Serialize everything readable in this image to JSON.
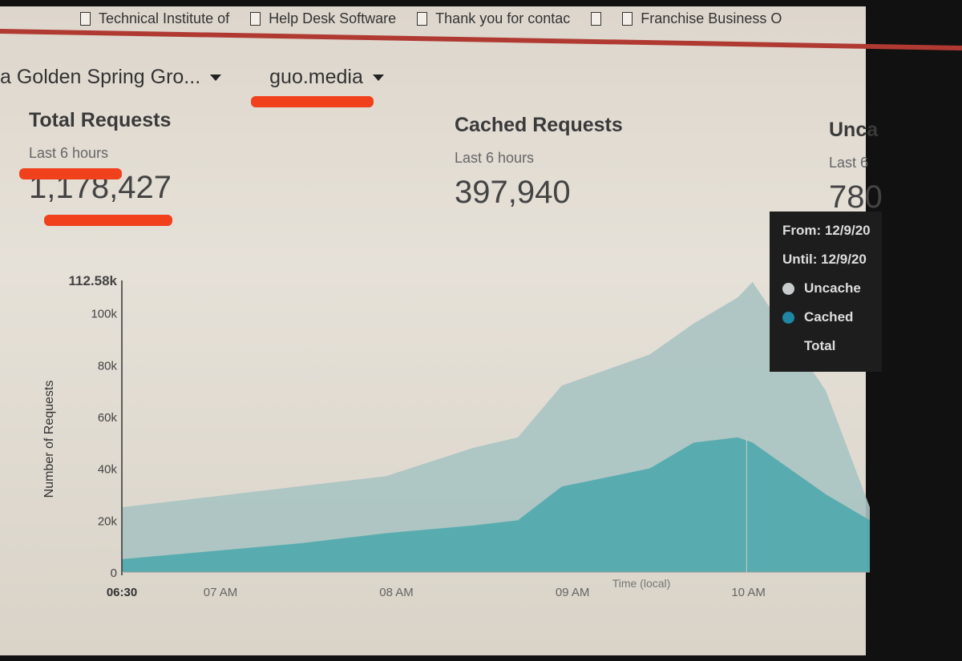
{
  "bookmarks": [
    {
      "label": "Technical Institute of",
      "icon": "page-icon"
    },
    {
      "label": "Help Desk Software",
      "icon": "page-icon"
    },
    {
      "label": "Thank you for contac",
      "icon": "file-icon"
    },
    {
      "label": "",
      "icon": "file-icon"
    },
    {
      "label": "Franchise Business O",
      "icon": "file-icon"
    }
  ],
  "breadcrumb": {
    "account": "a Golden Spring Gro...",
    "zone": "guo.media"
  },
  "stats": [
    {
      "title": "Total Requests",
      "subtitle": "Last 6 hours",
      "value": "1,178,427"
    },
    {
      "title": "Cached Requests",
      "subtitle": "Last 6 hours",
      "value": "397,940"
    },
    {
      "title": "Unca",
      "subtitle": "Last 6",
      "value": "780"
    }
  ],
  "tooltip": {
    "from": "From: 12/9/20",
    "until": "Until: 12/9/20",
    "uncached": "Uncache",
    "cached": "Cached",
    "total": "Total"
  },
  "colors": {
    "uncached": "#a9c3c2",
    "cached": "#4fa8ad",
    "accent_red": "#f0401c",
    "tooltip_bg": "#1d1d1d"
  },
  "chart_data": {
    "type": "area",
    "stacked": true,
    "ylabel": "Number of Requests",
    "xlabel": "Time (local)",
    "ylim": [
      0,
      112580
    ],
    "y_ticks": [
      "0",
      "20k",
      "40k",
      "60k",
      "80k",
      "100k",
      "112.58k"
    ],
    "y_tick_values": [
      0,
      20000,
      40000,
      60000,
      80000,
      100000,
      112580
    ],
    "x_ticks": [
      "06:30",
      "07 AM",
      "08 AM",
      "09 AM",
      "10 AM"
    ],
    "x_tick_hours": [
      6.5,
      7,
      8,
      9,
      10
    ],
    "x": [
      "06:30",
      "07:00",
      "07:30",
      "08:00",
      "08:30",
      "08:45",
      "09:00",
      "09:30",
      "09:45",
      "10:00",
      "10:05",
      "10:30",
      "10:45"
    ],
    "series": [
      {
        "name": "Cached",
        "values": [
          5000,
          8000,
          11000,
          15000,
          18000,
          20000,
          33000,
          40000,
          50000,
          52000,
          50000,
          30000,
          20000
        ]
      },
      {
        "name": "Total",
        "values": [
          25000,
          29000,
          33000,
          37000,
          48000,
          52000,
          72000,
          84000,
          96000,
          106000,
          112000,
          70000,
          25000
        ]
      }
    ]
  }
}
